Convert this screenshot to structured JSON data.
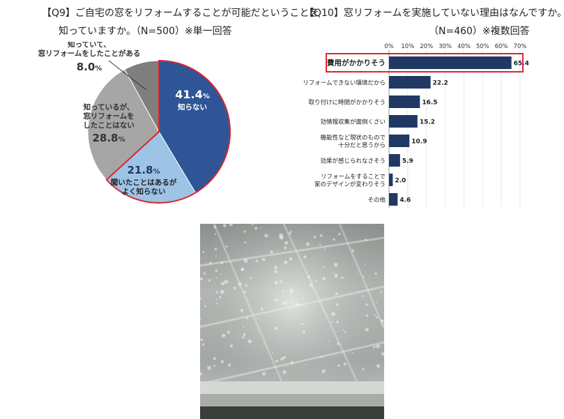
{
  "q9": {
    "title_line1": "【Q9】ご自宅の窓をリフォームすることが可能だということを",
    "title_line2": "知っていますか。（N=500）※単一回答"
  },
  "q10": {
    "title_line1": "【Q10】窓リフォームを実施していない理由はなんですか。",
    "title_line2": "（N=460）※複数回答"
  },
  "chart_data": [
    {
      "type": "pie",
      "title": "【Q9】ご自宅の窓をリフォームすることが可能だということを知っていますか。（N=500）※単一回答",
      "unit": "%",
      "slices": [
        {
          "label": "知らない",
          "value": 41.4,
          "color": "#2f5597"
        },
        {
          "label": "聞いたことはあるがよく知らない",
          "value": 21.8,
          "color": "#9dc3e6"
        },
        {
          "label": "知っているが、窓リフォームをしたことはない",
          "value": 28.8,
          "color": "#a6a6a6"
        },
        {
          "label": "知っていて、窓リフォームをしたことがある",
          "value": 8.0,
          "color": "#7f7f7f"
        }
      ],
      "labels": [
        {
          "text_lines": [
            "知らない"
          ],
          "value_text": "41.4"
        },
        {
          "text_lines": [
            "聞いたことはあるが",
            "よく知らない"
          ],
          "value_text": "21.8"
        },
        {
          "text_lines": [
            "知っているが、",
            "窓リフォームを",
            "したことはない"
          ],
          "value_text": "28.8"
        },
        {
          "text_lines": [
            "知っていて、",
            "窓リフォームをしたことがある"
          ],
          "value_text": "8.0"
        }
      ],
      "highlight_color": "#d9262b"
    },
    {
      "type": "bar",
      "orientation": "horizontal",
      "title": "【Q10】窓リフォームを実施していない理由はなんですか。（N=460）※複数回答",
      "categories": [
        [
          "費用がかかりそう"
        ],
        [
          "リフォームできない環境だから"
        ],
        [
          "取り付けに時間がかかりそう"
        ],
        [
          "効情報収集が面倒くさい"
        ],
        [
          "機能性など現状のもので",
          "十分だと思うから"
        ],
        [
          "効果が感じられなさそう"
        ],
        [
          "リフォームをすることで",
          "家のデザインが変わりそう"
        ],
        [
          "その他"
        ]
      ],
      "values": [
        65.4,
        22.2,
        16.5,
        15.2,
        10.9,
        5.9,
        2.0,
        4.6
      ],
      "value_labels": [
        "65.4",
        "22.2",
        "16.5",
        "15.2",
        "10.9",
        "5.9",
        "2.0",
        "4.6"
      ],
      "xticks": [
        "0%",
        "10%",
        "20%",
        "30%",
        "40%",
        "50%",
        "60%",
        "70%"
      ],
      "xlim": [
        0,
        70
      ],
      "bar_color": "#203864",
      "highlight_color": "#d9262b"
    }
  ]
}
